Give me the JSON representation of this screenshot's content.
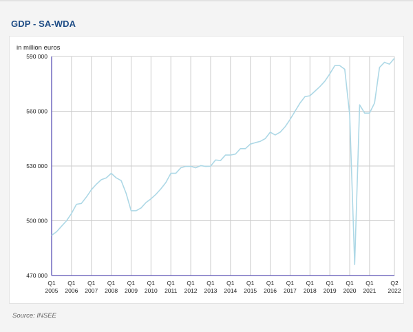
{
  "title": "GDP - SA-WDA",
  "source": "Source: INSEE",
  "colors": {
    "line": "#add8e6",
    "axis": "#5b52b5",
    "grid": "#cccccc",
    "title": "#1f4d86"
  },
  "chart_data": {
    "type": "line",
    "title": "GDP - SA-WDA",
    "ylabel": "in million euros",
    "xlabel": "",
    "ylim": [
      470000,
      590000
    ],
    "yticks": [
      470000,
      500000,
      530000,
      560000,
      590000
    ],
    "ytick_labels": [
      "470 000",
      "500 000",
      "530 000",
      "560 000",
      "590 000"
    ],
    "xticks": [
      {
        "q": "Q1",
        "y": "2005"
      },
      {
        "q": "Q1",
        "y": "2006"
      },
      {
        "q": "Q1",
        "y": "2007"
      },
      {
        "q": "Q1",
        "y": "2008"
      },
      {
        "q": "Q1",
        "y": "2009"
      },
      {
        "q": "Q1",
        "y": "2010"
      },
      {
        "q": "Q1",
        "y": "2011"
      },
      {
        "q": "Q1",
        "y": "2012"
      },
      {
        "q": "Q1",
        "y": "2013"
      },
      {
        "q": "Q1",
        "y": "2014"
      },
      {
        "q": "Q1",
        "y": "2015"
      },
      {
        "q": "Q1",
        "y": "2016"
      },
      {
        "q": "Q1",
        "y": "2017"
      },
      {
        "q": "Q1",
        "y": "2018"
      },
      {
        "q": "Q1",
        "y": "2019"
      },
      {
        "q": "Q1",
        "y": "2020"
      },
      {
        "q": "Q1",
        "y": "2021"
      },
      {
        "q": "Q2",
        "y": "2022"
      }
    ],
    "grid": true,
    "series": [
      {
        "x": [
          "2005-Q1",
          "2005-Q2",
          "2005-Q3",
          "2005-Q4",
          "2006-Q1",
          "2006-Q2",
          "2006-Q3",
          "2006-Q4",
          "2007-Q1",
          "2007-Q2",
          "2007-Q3",
          "2007-Q4",
          "2008-Q1",
          "2008-Q2",
          "2008-Q3",
          "2008-Q4",
          "2009-Q1",
          "2009-Q2",
          "2009-Q3",
          "2009-Q4",
          "2010-Q1",
          "2010-Q2",
          "2010-Q3",
          "2010-Q4",
          "2011-Q1",
          "2011-Q2",
          "2011-Q3",
          "2011-Q4",
          "2012-Q1",
          "2012-Q2",
          "2012-Q3",
          "2012-Q4",
          "2013-Q1",
          "2013-Q2",
          "2013-Q3",
          "2013-Q4",
          "2014-Q1",
          "2014-Q2",
          "2014-Q3",
          "2014-Q4",
          "2015-Q1",
          "2015-Q2",
          "2015-Q3",
          "2015-Q4",
          "2016-Q1",
          "2016-Q2",
          "2016-Q3",
          "2016-Q4",
          "2017-Q1",
          "2017-Q2",
          "2017-Q3",
          "2017-Q4",
          "2018-Q1",
          "2018-Q2",
          "2018-Q3",
          "2018-Q4",
          "2019-Q1",
          "2019-Q2",
          "2019-Q3",
          "2019-Q4",
          "2020-Q1",
          "2020-Q2",
          "2020-Q3",
          "2020-Q4",
          "2021-Q1",
          "2021-Q2",
          "2021-Q3",
          "2021-Q4",
          "2022-Q1",
          "2022-Q2"
        ],
        "values": [
          492000,
          494000,
          497000,
          500000,
          504000,
          509000,
          509500,
          513000,
          517000,
          520000,
          522500,
          523500,
          526000,
          523500,
          522000,
          515000,
          505500,
          505500,
          507000,
          510000,
          512000,
          514500,
          517500,
          521000,
          526000,
          526000,
          529000,
          529800,
          529800,
          529000,
          530200,
          529800,
          529900,
          533300,
          533000,
          536000,
          536000,
          536500,
          539500,
          539500,
          542000,
          542800,
          543500,
          545000,
          548500,
          547000,
          548500,
          551500,
          555500,
          560000,
          564500,
          568000,
          568500,
          571000,
          573500,
          576500,
          580500,
          585000,
          585000,
          583000,
          558000,
          476000,
          563500,
          559000,
          559000,
          564500,
          584000,
          586800,
          585800,
          589000
        ]
      }
    ]
  }
}
